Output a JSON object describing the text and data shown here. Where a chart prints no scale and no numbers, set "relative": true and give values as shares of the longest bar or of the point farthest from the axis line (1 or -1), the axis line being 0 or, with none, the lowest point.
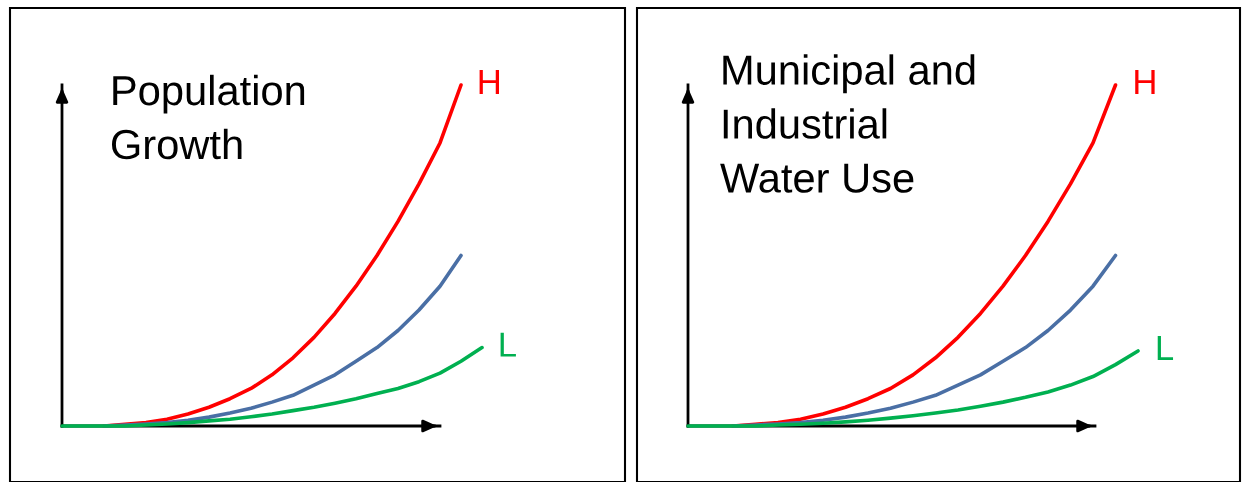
{
  "chart_data": [
    {
      "type": "line",
      "relative": true,
      "title": "Population\nGrowth",
      "categories": [
        null,
        null,
        null,
        null,
        null,
        null,
        null,
        null,
        null,
        null,
        null,
        null,
        null,
        null,
        null,
        null,
        null,
        null,
        null,
        null,
        null
      ],
      "legend": false,
      "marker": "none",
      "line_style": "solid",
      "series": [
        {
          "name": "H",
          "color": "#ff0000",
          "values": [
            null,
            null,
            0,
            0.005,
            0.01,
            0.02,
            0.035,
            0.055,
            0.08,
            0.11,
            0.15,
            0.2,
            0.26,
            0.33,
            0.41,
            0.5,
            0.6,
            0.71,
            0.83,
            1.0,
            null
          ]
        },
        {
          "color": "#4a6fa5",
          "values": [
            null,
            null,
            0,
            0.003,
            0.006,
            0.01,
            0.017,
            0.026,
            0.038,
            0.052,
            0.07,
            0.09,
            0.12,
            0.15,
            0.19,
            0.23,
            0.28,
            0.34,
            0.41,
            0.5,
            null
          ]
        },
        {
          "name": "L",
          "color": "#00b050",
          "values": [
            0,
            0,
            0,
            0,
            0.003,
            0.006,
            0.01,
            0.015,
            0.02,
            0.027,
            0.035,
            0.045,
            0.055,
            0.067,
            0.08,
            0.095,
            0.11,
            0.13,
            0.155,
            0.19,
            0.23
          ]
        }
      ]
    },
    {
      "type": "line",
      "relative": true,
      "title": "Municipal and\nIndustrial\nWater Use",
      "categories": [
        null,
        null,
        null,
        null,
        null,
        null,
        null,
        null,
        null,
        null,
        null,
        null,
        null,
        null,
        null,
        null,
        null,
        null,
        null,
        null,
        null
      ],
      "legend": false,
      "marker": "none",
      "line_style": "solid",
      "series": [
        {
          "name": "H",
          "color": "#ff0000",
          "values": [
            null,
            null,
            0,
            0.005,
            0.01,
            0.02,
            0.035,
            0.055,
            0.08,
            0.11,
            0.15,
            0.2,
            0.26,
            0.33,
            0.41,
            0.5,
            0.6,
            0.71,
            0.83,
            1.0,
            null
          ]
        },
        {
          "color": "#4a6fa5",
          "values": [
            null,
            null,
            0,
            0.003,
            0.006,
            0.01,
            0.017,
            0.026,
            0.038,
            0.052,
            0.07,
            0.09,
            0.12,
            0.15,
            0.19,
            0.23,
            0.28,
            0.34,
            0.41,
            0.5,
            null
          ]
        },
        {
          "name": "L",
          "color": "#00b050",
          "values": [
            0,
            0,
            0,
            0,
            0.003,
            0.005,
            0.008,
            0.012,
            0.017,
            0.023,
            0.03,
            0.038,
            0.047,
            0.058,
            0.07,
            0.084,
            0.1,
            0.12,
            0.145,
            0.18,
            0.22
          ]
        }
      ]
    }
  ]
}
